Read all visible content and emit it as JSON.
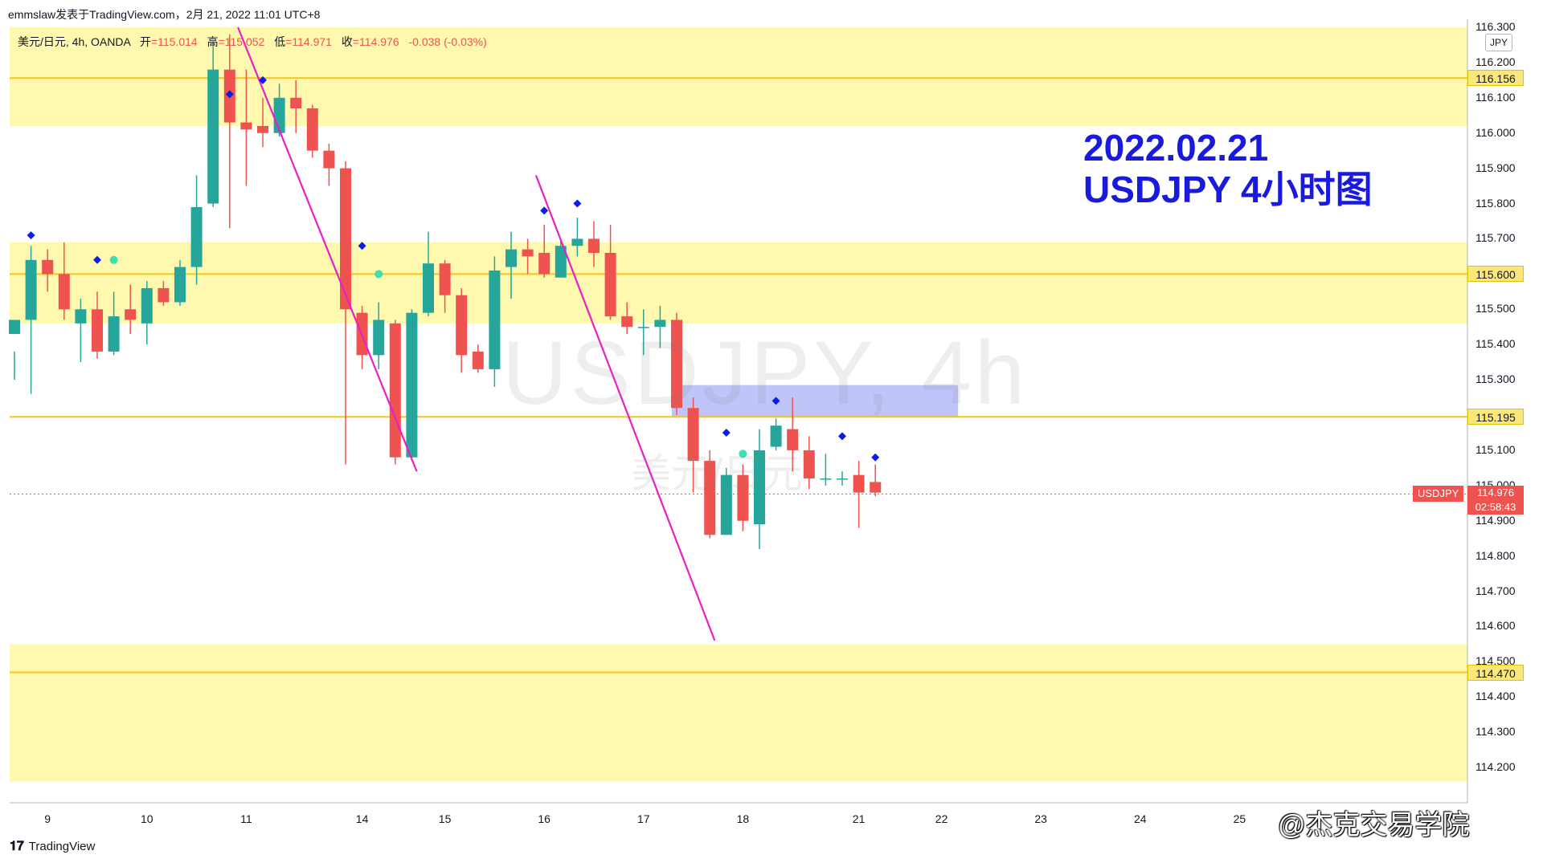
{
  "header": {
    "publisher_line": "emmslaw发表于TradingView.com，2月 21, 2022 11:01 UTC+8",
    "symbol_desc": "美元/日元, 4h, OANDA",
    "open_label": "开",
    "open_value": "=115.014",
    "high_label": "高",
    "high_value": "=115.052",
    "low_label": "低",
    "low_value": "=114.971",
    "close_label": "收",
    "close_value": "=114.976",
    "change_value": "-0.038 (-0.03%)"
  },
  "watermark": {
    "main": "USDJPY, 4h",
    "sub": "美元/日元"
  },
  "annotation": {
    "line1": "2022.02.21",
    "line2": "USDJPY 4小时图"
  },
  "currency_button": "JPY",
  "symbol_tag": "USDJPY",
  "price_tag": {
    "price": "114.976",
    "countdown": "02:58:43"
  },
  "level_tags": [
    "116.156",
    "115.600",
    "115.195",
    "114.470"
  ],
  "footer": {
    "brand": "TradingView",
    "credit": "@杰克交易学院"
  },
  "colors": {
    "up": "#26a69a",
    "down": "#ef5350",
    "zone": "#fff9b0",
    "level": "#f5c518",
    "trendline": "#e91ec8",
    "box": "#a9b1f7",
    "marker": "#0b1de8",
    "marker_alt": "#3be0b4",
    "annotation": "#1a1adc"
  },
  "chart_data": {
    "type": "candlestick",
    "symbol": "USDJPY",
    "timeframe": "4h",
    "y_axis": {
      "min": 114.1,
      "max": 116.3,
      "ticks": [
        "114.200",
        "114.300",
        "114.400",
        "114.500",
        "114.600",
        "114.700",
        "114.800",
        "114.900",
        "115.000",
        "115.100",
        "115.200",
        "115.300",
        "115.400",
        "115.500",
        "115.600",
        "115.700",
        "115.800",
        "115.900",
        "116.000",
        "116.100",
        "116.200",
        "116.300"
      ]
    },
    "x_axis": {
      "ticks": [
        {
          "label": "9",
          "index": 2
        },
        {
          "label": "10",
          "index": 8
        },
        {
          "label": "11",
          "index": 14
        },
        {
          "label": "14",
          "index": 21
        },
        {
          "label": "15",
          "index": 26
        },
        {
          "label": "16",
          "index": 32
        },
        {
          "label": "17",
          "index": 38
        },
        {
          "label": "18",
          "index": 44
        },
        {
          "label": "21",
          "index": 51
        },
        {
          "label": "22",
          "index": 56
        },
        {
          "label": "23",
          "index": 62
        },
        {
          "label": "24",
          "index": 68
        },
        {
          "label": "25",
          "index": 74
        }
      ]
    },
    "candles": [
      [
        115.43,
        115.47,
        115.38,
        115.3
      ],
      [
        115.47,
        115.64,
        115.68,
        115.26
      ],
      [
        115.64,
        115.6,
        115.67,
        115.55
      ],
      [
        115.6,
        115.5,
        115.69,
        115.47
      ],
      [
        115.46,
        115.5,
        115.53,
        115.35
      ],
      [
        115.5,
        115.38,
        115.55,
        115.36
      ],
      [
        115.38,
        115.48,
        115.55,
        115.37
      ],
      [
        115.5,
        115.47,
        115.57,
        115.43
      ],
      [
        115.46,
        115.56,
        115.58,
        115.4
      ],
      [
        115.56,
        115.52,
        115.58,
        115.51
      ],
      [
        115.52,
        115.62,
        115.64,
        115.51
      ],
      [
        115.62,
        115.79,
        115.88,
        115.57
      ],
      [
        115.8,
        116.18,
        116.26,
        115.79
      ],
      [
        116.18,
        116.03,
        116.28,
        115.73
      ],
      [
        116.03,
        116.01,
        116.18,
        115.85
      ],
      [
        116.02,
        116.0,
        116.1,
        115.96
      ],
      [
        116.0,
        116.1,
        116.14,
        115.99
      ],
      [
        116.1,
        116.07,
        116.15,
        116.0
      ],
      [
        116.07,
        115.95,
        116.08,
        115.93
      ],
      [
        115.95,
        115.9,
        115.97,
        115.85
      ],
      [
        115.9,
        115.5,
        115.92,
        115.06
      ],
      [
        115.49,
        115.37,
        115.51,
        115.33
      ],
      [
        115.37,
        115.47,
        115.52,
        115.33
      ],
      [
        115.46,
        115.08,
        115.47,
        115.06
      ],
      [
        115.08,
        115.49,
        115.5,
        115.07
      ],
      [
        115.49,
        115.63,
        115.72,
        115.48
      ],
      [
        115.63,
        115.54,
        115.64,
        115.49
      ],
      [
        115.54,
        115.37,
        115.56,
        115.32
      ],
      [
        115.38,
        115.33,
        115.4,
        115.32
      ],
      [
        115.33,
        115.61,
        115.65,
        115.28
      ],
      [
        115.62,
        115.67,
        115.72,
        115.53
      ],
      [
        115.67,
        115.65,
        115.7,
        115.6
      ],
      [
        115.66,
        115.6,
        115.74,
        115.59
      ],
      [
        115.59,
        115.68,
        115.7,
        115.59
      ],
      [
        115.68,
        115.7,
        115.76,
        115.65
      ],
      [
        115.7,
        115.66,
        115.75,
        115.62
      ],
      [
        115.66,
        115.48,
        115.74,
        115.47
      ],
      [
        115.48,
        115.45,
        115.52,
        115.43
      ],
      [
        115.45,
        115.45,
        115.5,
        115.37
      ],
      [
        115.45,
        115.47,
        115.51,
        115.39
      ],
      [
        115.47,
        115.22,
        115.49,
        115.2
      ],
      [
        115.22,
        115.07,
        115.25,
        114.98
      ],
      [
        115.07,
        114.86,
        115.1,
        114.85
      ],
      [
        114.86,
        115.03,
        115.05,
        114.86
      ],
      [
        115.03,
        114.9,
        115.06,
        114.87
      ],
      [
        114.89,
        115.1,
        115.16,
        114.82
      ],
      [
        115.11,
        115.17,
        115.19,
        115.1
      ],
      [
        115.16,
        115.1,
        115.25,
        115.04
      ],
      [
        115.1,
        115.02,
        115.14,
        114.99
      ],
      [
        115.02,
        115.02,
        115.09,
        115.0
      ],
      [
        115.02,
        115.02,
        115.04,
        115.0
      ],
      [
        115.03,
        114.98,
        115.07,
        114.88
      ],
      [
        115.01,
        114.98,
        115.06,
        114.97
      ]
    ],
    "zones": [
      [
        116.02,
        116.3
      ],
      [
        115.46,
        115.69
      ],
      [
        114.16,
        114.55
      ]
    ],
    "levels": [
      116.156,
      115.6,
      115.195,
      114.47
    ],
    "current_price": 114.976,
    "box": {
      "from_index": 40,
      "to_index": 57,
      "low": 115.195,
      "high": 115.285
    },
    "trendlines": [
      {
        "from": [
          13.5,
          116.3
        ],
        "to": [
          24.3,
          115.04
        ]
      },
      {
        "from": [
          31.5,
          115.88
        ],
        "to": [
          42.3,
          114.56
        ]
      }
    ],
    "markers": [
      {
        "index": 1,
        "price": 115.71,
        "kind": "diamond"
      },
      {
        "index": 5,
        "price": 115.64,
        "kind": "diamond"
      },
      {
        "index": 6,
        "price": 115.64,
        "kind": "dot"
      },
      {
        "index": 13,
        "price": 116.11,
        "kind": "diamond"
      },
      {
        "index": 15,
        "price": 116.15,
        "kind": "diamond"
      },
      {
        "index": 21,
        "price": 115.68,
        "kind": "diamond"
      },
      {
        "index": 22,
        "price": 115.6,
        "kind": "dot"
      },
      {
        "index": 32,
        "price": 115.78,
        "kind": "diamond"
      },
      {
        "index": 34,
        "price": 115.8,
        "kind": "diamond"
      },
      {
        "index": 43,
        "price": 115.15,
        "kind": "diamond"
      },
      {
        "index": 44,
        "price": 115.09,
        "kind": "dot"
      },
      {
        "index": 46,
        "price": 115.24,
        "kind": "diamond"
      },
      {
        "index": 50,
        "price": 115.14,
        "kind": "diamond"
      },
      {
        "index": 52,
        "price": 115.08,
        "kind": "diamond"
      }
    ]
  }
}
